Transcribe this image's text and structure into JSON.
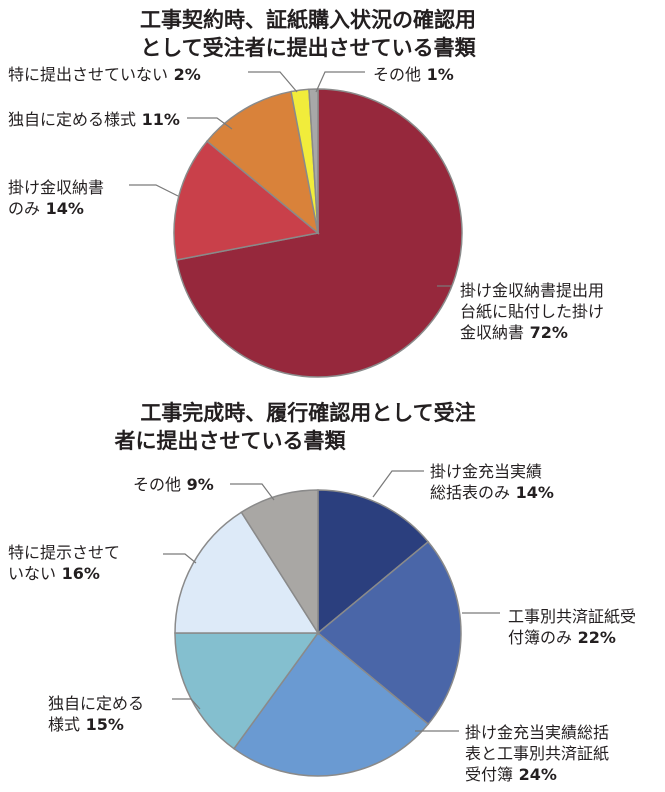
{
  "chart_data": [
    {
      "type": "pie",
      "title_lines": [
        "工事契約時、証紙購入状況の確認用",
        "として受注者に提出させている書類"
      ],
      "slices": [
        {
          "label_lines": [
            "掛け金収納書提出用",
            "台紙に貼付した掛け",
            "金収納書"
          ],
          "value": 72,
          "pct_text": "72%",
          "color": "#96283c"
        },
        {
          "label_lines": [
            "掛け金収納書",
            "のみ"
          ],
          "value": 14,
          "pct_text": "14%",
          "color": "#c9404a"
        },
        {
          "label_lines": [
            "独自に定める様式"
          ],
          "value": 11,
          "pct_text": "11%",
          "color": "#d9823a"
        },
        {
          "label_lines": [
            "特に提出させていない"
          ],
          "value": 2,
          "pct_text": "2%",
          "color": "#f1ec3b"
        },
        {
          "label_lines": [
            "その他"
          ],
          "value": 1,
          "pct_text": "1%",
          "color": "#a8a8a8"
        }
      ]
    },
    {
      "type": "pie",
      "title_lines": [
        "工事完成時、履行確認用として受注",
        "者に提出させている書類"
      ],
      "slices": [
        {
          "label_lines": [
            "掛け金充当実績",
            "総括表のみ"
          ],
          "value": 14,
          "pct_text": "14%",
          "color": "#2b3f7e"
        },
        {
          "label_lines": [
            "工事別共済証紙受",
            "付簿のみ"
          ],
          "value": 22,
          "pct_text": "22%",
          "color": "#4a66a8"
        },
        {
          "label_lines": [
            "掛け金充当実績総括",
            "表と工事別共済証紙",
            "受付簿"
          ],
          "value": 24,
          "pct_text": "24%",
          "color": "#6a9ad2"
        },
        {
          "label_lines": [
            "独自に定める",
            "様式"
          ],
          "value": 15,
          "pct_text": "15%",
          "color": "#84bfcf"
        },
        {
          "label_lines": [
            "特に提示させて",
            "いない"
          ],
          "value": 16,
          "pct_text": "16%",
          "color": "#ddeaf8"
        },
        {
          "label_lines": [
            "その他"
          ],
          "value": 9,
          "pct_text": "9%",
          "color": "#a9a7a4"
        }
      ]
    }
  ]
}
